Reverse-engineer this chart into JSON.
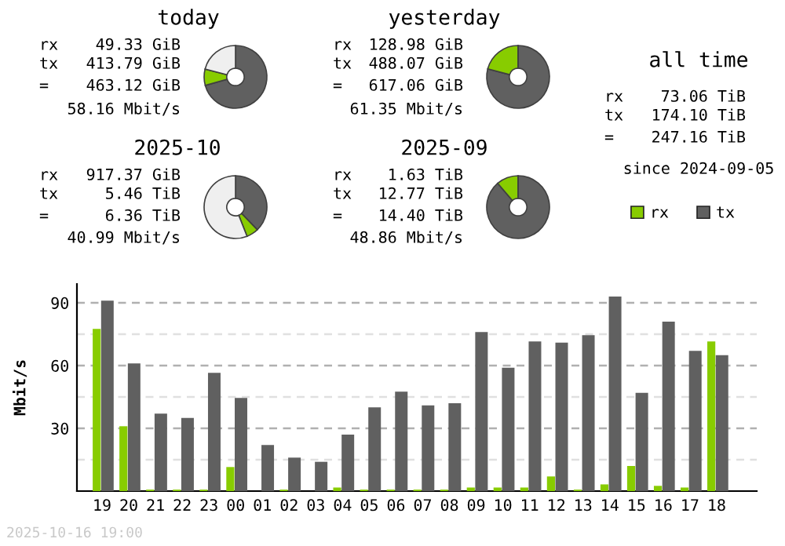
{
  "chart_data": [
    {
      "type": "donut",
      "title": "today",
      "annotations": [
        "rx",
        "49.33 GiB",
        "tx",
        "413.79 GiB",
        "=",
        "463.12 GiB",
        "58.16 Mbit/s"
      ],
      "categories": [
        null,
        null,
        null
      ],
      "values": [
        70.6,
        8.4,
        21.0
      ],
      "colors": [
        "#606060",
        "#88cc00",
        "#efefef"
      ]
    },
    {
      "type": "donut",
      "title": "yesterday",
      "annotations": [
        "rx",
        "128.98 GiB",
        "tx",
        "488.07 GiB",
        "=",
        "617.06 GiB",
        "61.35 Mbit/s"
      ],
      "categories": [
        null,
        null,
        null
      ],
      "values": [
        79.1,
        20.9,
        0
      ],
      "colors": [
        "#606060",
        "#88cc00",
        "#efefef"
      ]
    },
    {
      "type": "other",
      "title": "all time",
      "annotations": [
        "rx",
        "73.06 TiB",
        "tx",
        "174.10 TiB",
        "=",
        "247.16 TiB",
        "since 2024-09-05"
      ]
    },
    {
      "type": "donut",
      "title": "2025-10",
      "annotations": [
        "rx",
        "917.37 GiB",
        "tx",
        "5.46 TiB",
        "=",
        "6.36 TiB",
        "40.99 Mbit/s"
      ],
      "categories": [
        null,
        null,
        null
      ],
      "values": [
        37.8,
        6.2,
        56.0
      ],
      "colors": [
        "#606060",
        "#88cc00",
        "#efefef"
      ]
    },
    {
      "type": "donut",
      "title": "2025-09",
      "annotations": [
        "rx",
        "1.63 TiB",
        "tx",
        "12.77 TiB",
        "=",
        "14.40 TiB",
        "48.86 Mbit/s"
      ],
      "categories": [
        null,
        null,
        null
      ],
      "values": [
        88.7,
        11.3,
        0
      ],
      "colors": [
        "#606060",
        "#88cc00",
        "#efefef"
      ]
    },
    {
      "type": "bar",
      "ylabel": "Mbit/s",
      "annotations": [
        "2025-10-16 19:00"
      ],
      "categories": [
        "19",
        "20",
        "21",
        "22",
        "23",
        "00",
        "01",
        "02",
        "03",
        "04",
        "05",
        "06",
        "07",
        "08",
        "09",
        "10",
        "11",
        "12",
        "13",
        "14",
        "15",
        "16",
        "17",
        "18"
      ],
      "series": [
        {
          "name": "rx",
          "color": "#88cc00",
          "values": [
            77.5,
            31,
            0.7,
            0.7,
            0.7,
            11.5,
            0,
            0.7,
            0,
            1.7,
            0.7,
            0.7,
            0.7,
            0.7,
            1.7,
            1.7,
            1.7,
            7,
            0.7,
            3.2,
            12,
            2.5,
            1.7,
            71.5
          ]
        },
        {
          "name": "tx",
          "color": "#606060",
          "values": [
            91,
            61,
            37,
            35,
            56.5,
            44.5,
            22,
            16,
            14,
            27,
            40,
            47.5,
            41,
            42,
            76,
            59,
            71.5,
            71,
            74.5,
            93,
            47,
            81,
            67,
            65
          ]
        }
      ],
      "ylim": [
        0,
        99
      ],
      "yticks": [
        {
          "value": 15,
          "label": null
        },
        30,
        {
          "value": 45,
          "label": null
        },
        60,
        {
          "value": 75,
          "label": null
        },
        90
      ],
      "grid": "y",
      "legend": "top right"
    }
  ]
}
